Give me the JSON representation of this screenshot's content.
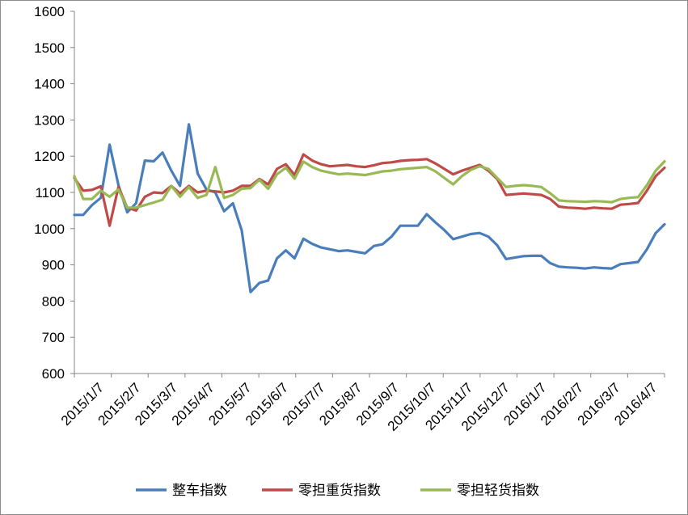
{
  "chart_data": {
    "type": "line",
    "title": "",
    "xlabel": "",
    "ylabel": "",
    "ylim": [
      600,
      1600
    ],
    "yticks": [
      600,
      700,
      800,
      900,
      1000,
      1100,
      1200,
      1300,
      1400,
      1500,
      1600
    ],
    "xtick_labels": [
      "2015/1/7",
      "2015/2/7",
      "2015/3/7",
      "2015/4/7",
      "2015/5/7",
      "2015/6/7",
      "2015/7/7",
      "2015/8/7",
      "2015/9/7",
      "2015/10/7",
      "2015/11/7",
      "2015/12/7",
      "2016/1/7",
      "2016/2/7",
      "2016/3/7",
      "2016/4/7"
    ],
    "grid": false,
    "legend": "bottom",
    "series": [
      {
        "name": "整车指数",
        "color": "#4a7ebb",
        "values": [
          1038,
          1038,
          1065,
          1085,
          1232,
          1120,
          1045,
          1070,
          1188,
          1186,
          1210,
          1160,
          1118,
          1288,
          1152,
          1108,
          1100,
          1048,
          1070,
          995,
          825,
          850,
          857,
          918,
          940,
          918,
          972,
          958,
          948,
          943,
          938,
          940,
          936,
          932,
          952,
          957,
          978,
          1008,
          1008,
          1008,
          1040,
          1017,
          996,
          971,
          978,
          985,
          988,
          978,
          954,
          916,
          920,
          924,
          925,
          925,
          905,
          895,
          893,
          892,
          890,
          893,
          891,
          890,
          902,
          905,
          908,
          943,
          988,
          1012
        ]
      },
      {
        "name": "零担重货指数",
        "color": "#be4b48",
        "values": [
          1140,
          1105,
          1107,
          1117,
          1008,
          1115,
          1058,
          1050,
          1088,
          1100,
          1098,
          1118,
          1097,
          1118,
          1100,
          1105,
          1103,
          1100,
          1105,
          1118,
          1118,
          1137,
          1122,
          1165,
          1178,
          1148,
          1205,
          1188,
          1178,
          1172,
          1174,
          1176,
          1172,
          1170,
          1175,
          1181,
          1183,
          1187,
          1189,
          1190,
          1192,
          1180,
          1165,
          1150,
          1160,
          1168,
          1176,
          1160,
          1137,
          1093,
          1095,
          1097,
          1095,
          1093,
          1082,
          1061,
          1058,
          1057,
          1055,
          1058,
          1056,
          1055,
          1066,
          1068,
          1071,
          1105,
          1145,
          1168
        ]
      },
      {
        "name": "零担轻货指数",
        "color": "#98b954",
        "values": [
          1145,
          1082,
          1082,
          1105,
          1088,
          1108,
          1058,
          1058,
          1065,
          1072,
          1080,
          1118,
          1088,
          1115,
          1085,
          1093,
          1170,
          1085,
          1093,
          1110,
          1112,
          1135,
          1110,
          1150,
          1168,
          1138,
          1185,
          1170,
          1160,
          1155,
          1150,
          1152,
          1150,
          1148,
          1153,
          1158,
          1160,
          1164,
          1166,
          1168,
          1170,
          1158,
          1140,
          1122,
          1145,
          1162,
          1172,
          1165,
          1140,
          1115,
          1118,
          1120,
          1118,
          1115,
          1098,
          1078,
          1076,
          1075,
          1074,
          1076,
          1075,
          1073,
          1082,
          1085,
          1087,
          1120,
          1160,
          1186
        ]
      }
    ]
  }
}
